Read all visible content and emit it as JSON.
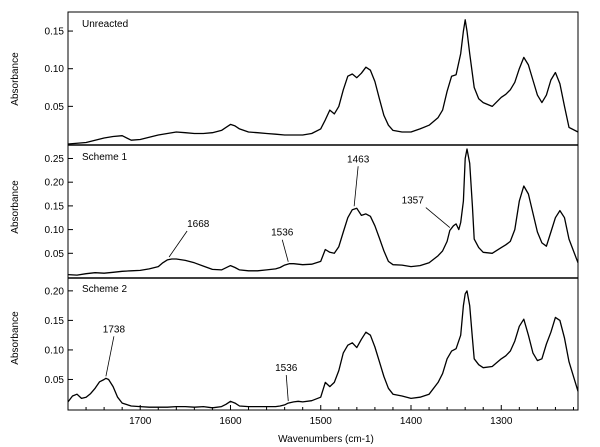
{
  "chart_data": {
    "type": "line",
    "xlabel": "Wavenumbers (cm-1)",
    "xlim": [
      1780,
      1215
    ],
    "x_reversed": true,
    "x_ticks": [
      1700,
      1600,
      1500,
      1400,
      1300
    ],
    "panels": [
      {
        "name": "Unreacted",
        "ylabel": "Absorbance",
        "ylim": [
          0.0,
          0.17
        ],
        "y_ticks": [
          0.05,
          0.1,
          0.15
        ],
        "y_tick_labels": [
          "0.05",
          "0.10",
          "0.15"
        ],
        "series": [
          {
            "x": [
              1780,
              1760,
              1740,
              1730,
              1720,
              1710,
              1700,
              1690,
              1680,
              1670,
              1660,
              1650,
              1640,
              1630,
              1620,
              1610,
              1600,
              1595,
              1590,
              1580,
              1570,
              1560,
              1550,
              1540,
              1530,
              1520,
              1510,
              1500,
              1495,
              1490,
              1485,
              1480,
              1475,
              1470,
              1465,
              1460,
              1455,
              1450,
              1445,
              1440,
              1435,
              1430,
              1425,
              1420,
              1410,
              1400,
              1390,
              1380,
              1370,
              1365,
              1360,
              1355,
              1350,
              1345,
              1342,
              1340,
              1338,
              1335,
              1330,
              1325,
              1320,
              1310,
              1300,
              1295,
              1290,
              1285,
              1280,
              1275,
              1270,
              1265,
              1260,
              1255,
              1250,
              1245,
              1240,
              1235,
              1230,
              1225,
              1215
            ],
            "y": [
              0.0,
              0.002,
              0.008,
              0.01,
              0.011,
              0.005,
              0.006,
              0.009,
              0.012,
              0.014,
              0.016,
              0.015,
              0.014,
              0.014,
              0.015,
              0.018,
              0.026,
              0.024,
              0.02,
              0.016,
              0.015,
              0.014,
              0.013,
              0.012,
              0.012,
              0.012,
              0.014,
              0.02,
              0.032,
              0.045,
              0.04,
              0.05,
              0.072,
              0.09,
              0.093,
              0.088,
              0.094,
              0.102,
              0.098,
              0.083,
              0.06,
              0.038,
              0.025,
              0.018,
              0.016,
              0.016,
              0.02,
              0.025,
              0.035,
              0.045,
              0.07,
              0.09,
              0.092,
              0.12,
              0.15,
              0.165,
              0.15,
              0.12,
              0.075,
              0.06,
              0.055,
              0.05,
              0.062,
              0.066,
              0.072,
              0.082,
              0.1,
              0.115,
              0.105,
              0.085,
              0.065,
              0.055,
              0.065,
              0.085,
              0.095,
              0.08,
              0.05,
              0.022,
              0.016
            ]
          }
        ],
        "annotations": []
      },
      {
        "name": "Scheme 1",
        "ylabel": "Absorbance",
        "ylim": [
          0.0,
          0.27
        ],
        "y_ticks": [
          0.05,
          0.1,
          0.15,
          0.2,
          0.25
        ],
        "y_tick_labels": [
          "0.05",
          "0.10",
          "0.15",
          "0.20",
          "0.25"
        ],
        "series": [
          {
            "x": [
              1780,
              1770,
              1760,
              1750,
              1740,
              1730,
              1720,
              1710,
              1700,
              1690,
              1680,
              1675,
              1670,
              1665,
              1660,
              1650,
              1640,
              1630,
              1620,
              1610,
              1600,
              1595,
              1590,
              1580,
              1570,
              1560,
              1550,
              1545,
              1540,
              1535,
              1530,
              1520,
              1510,
              1500,
              1495,
              1490,
              1485,
              1480,
              1475,
              1470,
              1465,
              1460,
              1455,
              1450,
              1445,
              1440,
              1435,
              1430,
              1425,
              1420,
              1410,
              1400,
              1390,
              1380,
              1370,
              1365,
              1360,
              1357,
              1353,
              1350,
              1347,
              1345,
              1342,
              1340,
              1338,
              1335,
              1332,
              1330,
              1325,
              1320,
              1310,
              1300,
              1295,
              1290,
              1285,
              1280,
              1275,
              1270,
              1265,
              1260,
              1255,
              1250,
              1245,
              1240,
              1235,
              1230,
              1225,
              1215
            ],
            "y": [
              0.005,
              0.004,
              0.007,
              0.009,
              0.008,
              0.01,
              0.012,
              0.013,
              0.014,
              0.017,
              0.022,
              0.03,
              0.036,
              0.038,
              0.038,
              0.035,
              0.03,
              0.023,
              0.016,
              0.015,
              0.024,
              0.02,
              0.015,
              0.013,
              0.013,
              0.015,
              0.017,
              0.02,
              0.025,
              0.028,
              0.028,
              0.026,
              0.027,
              0.033,
              0.058,
              0.052,
              0.05,
              0.064,
              0.095,
              0.125,
              0.142,
              0.145,
              0.13,
              0.133,
              0.128,
              0.108,
              0.082,
              0.055,
              0.033,
              0.026,
              0.025,
              0.022,
              0.024,
              0.03,
              0.045,
              0.055,
              0.075,
              0.098,
              0.108,
              0.112,
              0.1,
              0.115,
              0.16,
              0.25,
              0.27,
              0.24,
              0.15,
              0.08,
              0.062,
              0.052,
              0.05,
              0.062,
              0.068,
              0.075,
              0.1,
              0.16,
              0.192,
              0.175,
              0.135,
              0.095,
              0.072,
              0.065,
              0.095,
              0.125,
              0.14,
              0.125,
              0.08,
              0.03
            ]
          }
        ],
        "annotations": [
          {
            "text": "1668",
            "x": 1668,
            "y": 0.038
          },
          {
            "text": "1536",
            "x": 1536,
            "y": 0.028
          },
          {
            "text": "1463",
            "x": 1463,
            "y": 0.145
          },
          {
            "text": "1357",
            "x": 1357,
            "y": 0.1
          }
        ]
      },
      {
        "name": "Scheme 2",
        "ylabel": "Absorbance",
        "ylim": [
          0.0,
          0.215
        ],
        "y_ticks": [
          0.05,
          0.1,
          0.15,
          0.2
        ],
        "y_tick_labels": [
          "0.05",
          "0.10",
          "0.15",
          "0.20"
        ],
        "series": [
          {
            "x": [
              1780,
              1775,
              1770,
              1765,
              1760,
              1755,
              1750,
              1745,
              1740,
              1738,
              1735,
              1730,
              1725,
              1720,
              1710,
              1700,
              1690,
              1680,
              1670,
              1660,
              1650,
              1640,
              1630,
              1620,
              1610,
              1605,
              1600,
              1595,
              1590,
              1580,
              1570,
              1560,
              1550,
              1545,
              1540,
              1536,
              1530,
              1525,
              1520,
              1510,
              1500,
              1495,
              1490,
              1485,
              1480,
              1475,
              1470,
              1465,
              1460,
              1455,
              1450,
              1445,
              1440,
              1435,
              1430,
              1425,
              1420,
              1410,
              1400,
              1390,
              1380,
              1370,
              1365,
              1360,
              1355,
              1350,
              1345,
              1342,
              1340,
              1338,
              1335,
              1332,
              1330,
              1325,
              1320,
              1310,
              1300,
              1295,
              1290,
              1285,
              1280,
              1275,
              1270,
              1265,
              1260,
              1255,
              1250,
              1245,
              1240,
              1235,
              1230,
              1225,
              1215
            ],
            "y": [
              0.012,
              0.022,
              0.025,
              0.018,
              0.02,
              0.026,
              0.035,
              0.046,
              0.05,
              0.052,
              0.05,
              0.038,
              0.02,
              0.01,
              0.005,
              0.004,
              0.003,
              0.003,
              0.003,
              0.004,
              0.004,
              0.003,
              0.004,
              0.002,
              0.004,
              0.008,
              0.013,
              0.01,
              0.005,
              0.004,
              0.004,
              0.004,
              0.004,
              0.005,
              0.007,
              0.01,
              0.012,
              0.013,
              0.012,
              0.014,
              0.02,
              0.045,
              0.038,
              0.045,
              0.065,
              0.095,
              0.108,
              0.112,
              0.104,
              0.118,
              0.13,
              0.125,
              0.105,
              0.08,
              0.055,
              0.035,
              0.025,
              0.022,
              0.018,
              0.02,
              0.025,
              0.045,
              0.06,
              0.085,
              0.098,
              0.102,
              0.125,
              0.175,
              0.195,
              0.2,
              0.175,
              0.12,
              0.085,
              0.075,
              0.07,
              0.072,
              0.085,
              0.09,
              0.098,
              0.115,
              0.14,
              0.152,
              0.125,
              0.095,
              0.082,
              0.085,
              0.11,
              0.13,
              0.155,
              0.15,
              0.12,
              0.08,
              0.03
            ]
          }
        ],
        "annotations": [
          {
            "text": "1738",
            "x": 1738,
            "y": 0.052
          },
          {
            "text": "1536",
            "x": 1536,
            "y": 0.01
          }
        ]
      }
    ]
  }
}
